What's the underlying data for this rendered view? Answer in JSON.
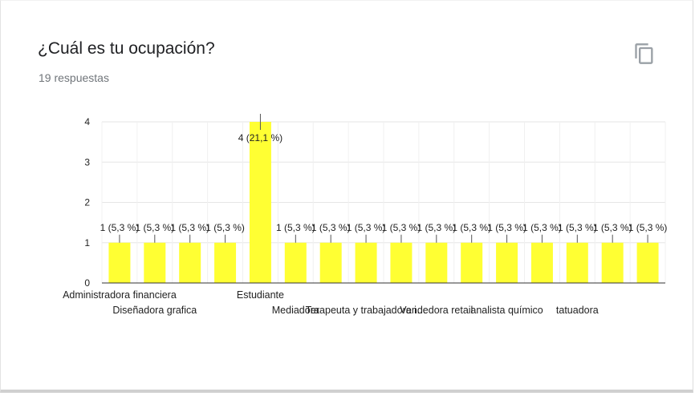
{
  "question": {
    "title": "¿Cuál es tu ocupación?",
    "responses": "19 respuestas"
  },
  "icons": {
    "copy": "copy-icon"
  },
  "colors": {
    "bar": "#ffff33",
    "grid": "#e6e6e6",
    "axis": "#333333"
  },
  "chart_data": {
    "type": "bar",
    "title": "",
    "xlabel": "",
    "ylabel": "",
    "ylim": [
      0,
      4
    ],
    "yticks": [
      0,
      1,
      2,
      3,
      4
    ],
    "grid": true,
    "categories": [
      "Administradora financiera",
      "Diseñadora grafica",
      "",
      "",
      "Estudiante",
      "Mediadora",
      "",
      "Terapeuta y trabajadora i…",
      "",
      "Vendedora retail",
      "",
      "analista químico",
      "",
      "tatuadora",
      "",
      ""
    ],
    "values": [
      1,
      1,
      1,
      1,
      4,
      1,
      1,
      1,
      1,
      1,
      1,
      1,
      1,
      1,
      1,
      1
    ],
    "data_labels": [
      "1 (5,3 %)",
      "1 (5,3 %)",
      "1 (5,3 %)",
      "1 (5,3 %)",
      "4 (21,1 %)",
      "1 (5,3 %)",
      "1 (5,3 %)",
      "1 (5,3 %)",
      "1 (5,3 %)",
      "1 (5,3 %)",
      "1 (5,3 %)",
      "1 (5,3 %)",
      "1 (5,3 %)",
      "1 (5,3 %)",
      "1 (5,3 %)",
      "1 (5,3 %)"
    ]
  }
}
